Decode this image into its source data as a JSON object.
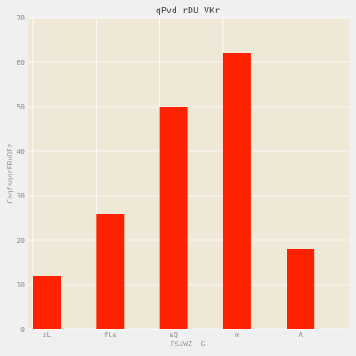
{
  "chart_data": {
    "type": "bar",
    "title": "qPvd rDU VKr",
    "xlabel": "PSzWZ  G",
    "ylabel": "CeqfsqqrBRuQEz",
    "categories": [
      "zL",
      "fls",
      "sQ",
      "m",
      "A"
    ],
    "values": [
      12,
      26,
      50,
      62,
      18
    ],
    "ylim": [
      0,
      70
    ],
    "yticks": [
      0,
      10,
      20,
      30,
      40,
      50,
      60,
      70
    ],
    "grid": true,
    "bar_color": "#ff2200",
    "plot_background": "#efe8d7",
    "figure_background": "#f0f0f0"
  }
}
